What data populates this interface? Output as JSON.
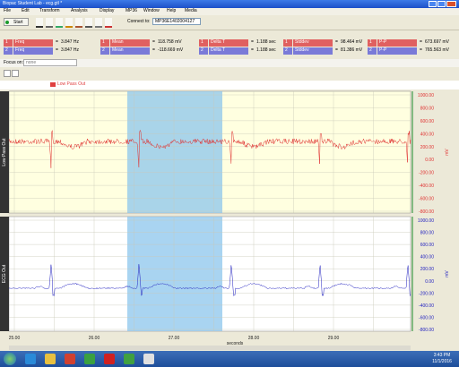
{
  "window": {
    "title": "Biopac Student Lab - ecg.gtl *"
  },
  "menu": [
    "File",
    "Edit",
    "Transform",
    "Analysis",
    "Display",
    "MP36",
    "Window",
    "Help",
    "Media"
  ],
  "toolbar": {
    "start": "Start",
    "connect_label": "Connect to:",
    "device": "MP36E1402004127"
  },
  "equals": "=",
  "measurements": [
    [
      {
        "channel": "1",
        "func": "Freq",
        "value": "3.847 Hz"
      },
      {
        "channel": "1",
        "func": "Mean",
        "value": "118.758 mV"
      },
      {
        "channel": "1",
        "func": "Delta T",
        "value": "1.188 sec"
      },
      {
        "channel": "1",
        "func": "Stddev",
        "value": "98.464 mV"
      },
      {
        "channel": "1",
        "func": "P-P",
        "value": "673.697 mV"
      }
    ],
    [
      {
        "channel": "2",
        "func": "Freq",
        "value": "3.847 Hz"
      },
      {
        "channel": "2",
        "func": "Mean",
        "value": "-118.669 mV"
      },
      {
        "channel": "2",
        "func": "Delta T",
        "value": "1.188 sec"
      },
      {
        "channel": "2",
        "func": "Stddev",
        "value": "81.386 mV"
      },
      {
        "channel": "2",
        "func": "P-P",
        "value": "765.563 mV"
      }
    ]
  ],
  "focus": {
    "label": "Focus on:",
    "value": "none"
  },
  "channels": [
    {
      "name": "Low Pass Out",
      "unit": "mV",
      "ticks": [
        "1000.00",
        "800.00",
        "600.00",
        "400.00",
        "200.00",
        "0.00",
        "-200.00",
        "-400.00",
        "-600.00",
        "-800.00"
      ]
    },
    {
      "name": "ECG Out",
      "unit": "mV",
      "ticks": [
        "1000.00",
        "800.00",
        "600.00",
        "400.00",
        "200.00",
        "0.00",
        "-200.00",
        "-400.00",
        "-600.00",
        "-800.00"
      ]
    }
  ],
  "xaxis": {
    "ticks": [
      "25.00",
      "26.00",
      "27.00",
      "28.00",
      "29.00"
    ],
    "label": "seconds"
  },
  "taskbar": {
    "time": "3:43 PM",
    "date": "11/1/2016"
  }
}
